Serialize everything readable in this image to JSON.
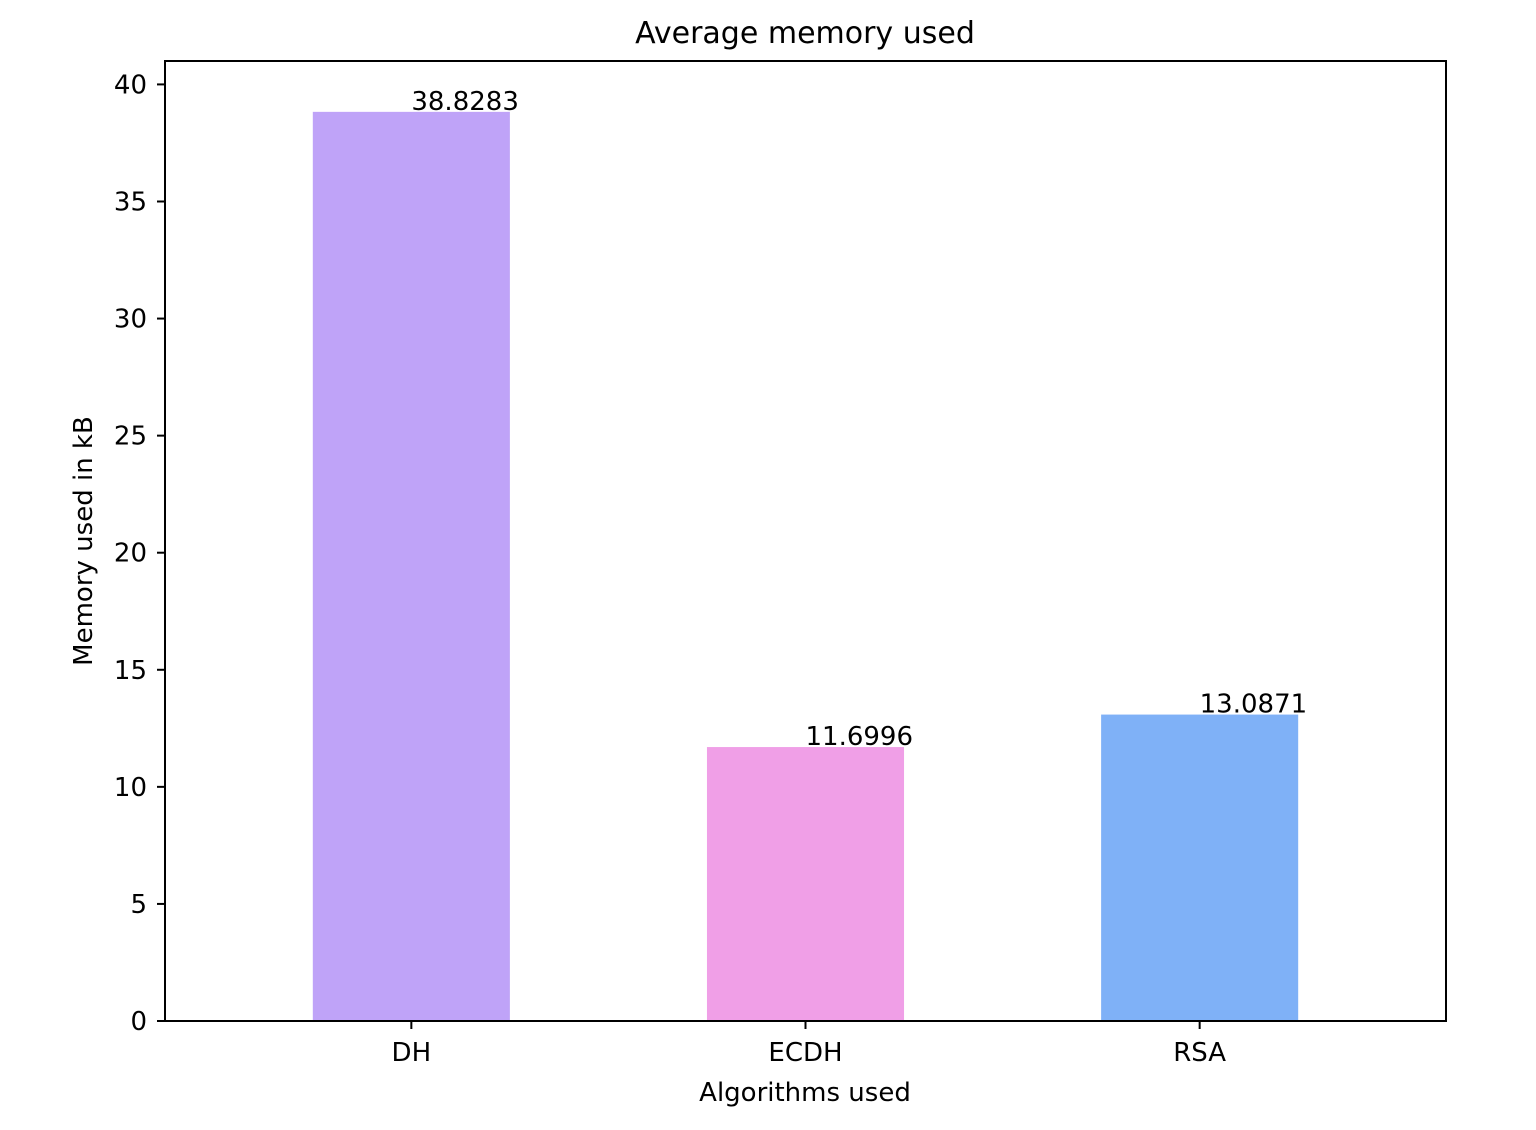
{
  "chart_data": {
    "type": "bar",
    "title": "Average memory used",
    "xlabel": "Algorithms used",
    "ylabel": "Memory used in kB",
    "categories": [
      "DH",
      "ECDH",
      "RSA"
    ],
    "values": [
      38.8283,
      11.6996,
      13.0871
    ],
    "data_labels": [
      "38.8283",
      "11.6996",
      "13.0871"
    ],
    "colors": [
      "#bfa3f8",
      "#f09fe7",
      "#7fb1f7"
    ],
    "ylim": [
      0,
      41
    ],
    "yticks": [
      0,
      5,
      10,
      15,
      20,
      25,
      30,
      35,
      40
    ],
    "grid": false,
    "legend": "none"
  }
}
